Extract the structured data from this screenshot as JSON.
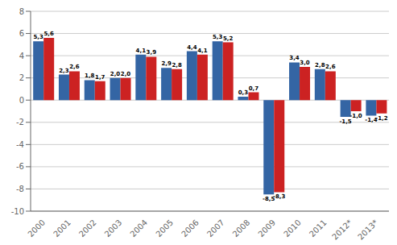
{
  "chart_data": {
    "type": "bar",
    "categories": [
      "2000",
      "2001",
      "2002",
      "2003",
      "2004",
      "2005",
      "2006",
      "2007",
      "2008",
      "2009",
      "2010",
      "2011",
      "2012*",
      "2013*"
    ],
    "series": [
      {
        "color": "#3465a4",
        "values": [
          5.3,
          2.3,
          1.8,
          2.0,
          4.1,
          2.9,
          4.4,
          5.3,
          0.3,
          -8.5,
          3.4,
          2.8,
          -1.5,
          -1.4
        ],
        "value_labels": [
          "5,3",
          "2,3",
          "1,8",
          "2,0",
          "4,1",
          "2,9",
          "4,4",
          "5,3",
          "0,3",
          "-8,5",
          "3,4",
          "2,8",
          "-1,5",
          "-1,4"
        ]
      },
      {
        "color": "#cc2222",
        "values": [
          5.6,
          2.6,
          1.7,
          2.0,
          3.9,
          2.8,
          4.1,
          5.2,
          0.7,
          -8.3,
          3.0,
          2.6,
          -1.0,
          -1.2
        ],
        "value_labels": [
          "5,6",
          "2,6",
          "1,7",
          "2,0",
          "3,9",
          "2,8",
          "4,1",
          "5,2",
          "0,7",
          "-8,3",
          "3,0",
          "2,6",
          "-1,0",
          "-1,2"
        ]
      }
    ],
    "ylim": [
      -10,
      8
    ],
    "yticks": [
      -10,
      -8,
      -6,
      -4,
      -2,
      0,
      2,
      4,
      6,
      8
    ],
    "grid": true,
    "data_labels": true
  }
}
